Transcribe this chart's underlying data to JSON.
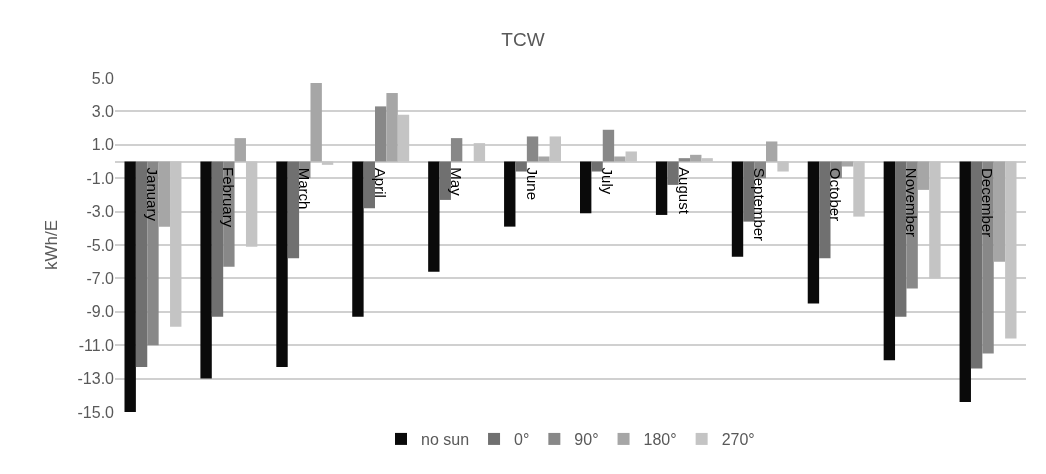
{
  "chart_data": {
    "type": "bar",
    "title": "TCW",
    "ylabel": "kWh/E",
    "categories": [
      "January",
      "February",
      "March",
      "April",
      "May",
      "June",
      "July",
      "August",
      "September",
      "October",
      "November",
      "December"
    ],
    "series": [
      {
        "name": "no sun",
        "color": "#0a0a0a",
        "values": [
          -15.0,
          -13.0,
          -12.3,
          -9.3,
          -6.6,
          -3.9,
          -3.1,
          -3.2,
          -5.7,
          -8.5,
          -11.9,
          -14.4
        ]
      },
      {
        "name": "0°",
        "color": "#707070",
        "values": [
          -12.3,
          -9.3,
          -5.8,
          -2.8,
          -2.3,
          -0.6,
          -0.6,
          -1.4,
          -3.6,
          -5.8,
          -9.3,
          -12.4
        ]
      },
      {
        "name": "90°",
        "color": "#888888",
        "values": [
          -11.0,
          -6.3,
          -1.0,
          3.3,
          1.4,
          1.5,
          1.9,
          0.2,
          -1.0,
          -1.0,
          -7.6,
          -11.5
        ]
      },
      {
        "name": "180°",
        "color": "#a6a6a6",
        "values": [
          -3.9,
          1.4,
          4.7,
          4.1,
          0.0,
          0.3,
          0.3,
          0.4,
          1.2,
          -0.3,
          -1.7,
          -6.0
        ]
      },
      {
        "name": "270°",
        "color": "#c4c4c4",
        "values": [
          -9.9,
          -5.1,
          -0.2,
          2.8,
          1.1,
          1.5,
          0.6,
          0.2,
          -0.6,
          -3.3,
          -7.0,
          -10.6
        ]
      }
    ],
    "ylim": [
      -15,
      5
    ],
    "yticks": [
      {
        "value": -15,
        "label": "-15.0"
      },
      {
        "value": -13,
        "label": "-13.0"
      },
      {
        "value": -11,
        "label": "-11.0"
      },
      {
        "value": -9,
        "label": "-9.0"
      },
      {
        "value": -7,
        "label": "-7.0"
      },
      {
        "value": -5,
        "label": "-5.0"
      },
      {
        "value": -3,
        "label": "-3.0"
      },
      {
        "value": -1,
        "label": "-1.0"
      },
      {
        "value": 1,
        "label": "1.0"
      },
      {
        "value": 3,
        "label": "3.0"
      },
      {
        "value": 5,
        "label": "5.0"
      }
    ],
    "grid": "y",
    "legend": "bottom"
  }
}
